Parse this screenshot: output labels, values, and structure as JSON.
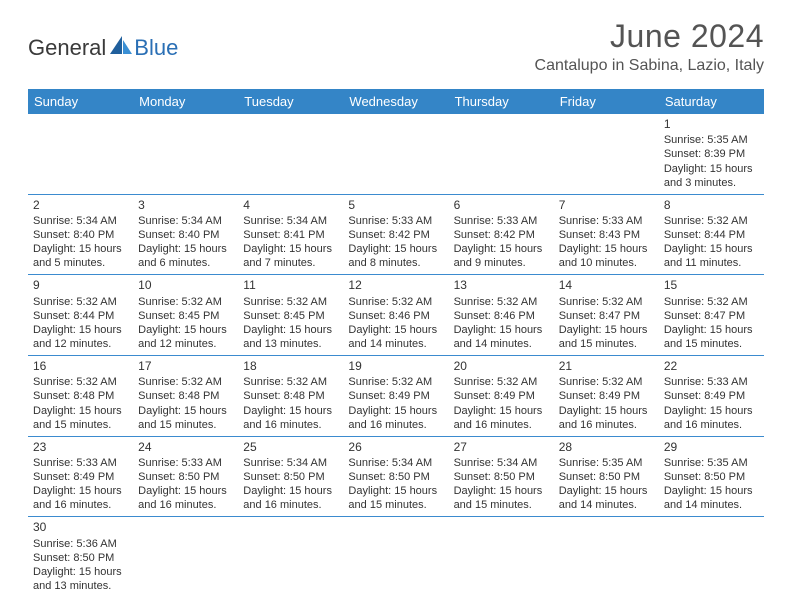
{
  "branding": {
    "logo_general": "General",
    "logo_blue": "Blue"
  },
  "header": {
    "month_title": "June 2024",
    "location": "Cantalupo in Sabina, Lazio, Italy"
  },
  "styling": {
    "header_bg": "#3485c7",
    "header_text": "#ffffff",
    "border_color": "#3b8bcf",
    "body_text": "#333333",
    "title_color": "#545454",
    "accent_blue": "#2a6fb5",
    "day_font_size": 11,
    "header_font_size": 13
  },
  "day_labels": [
    "Sunday",
    "Monday",
    "Tuesday",
    "Wednesday",
    "Thursday",
    "Friday",
    "Saturday"
  ],
  "weeks": [
    [
      null,
      null,
      null,
      null,
      null,
      null,
      {
        "n": "1",
        "sr": "5:35 AM",
        "ss": "8:39 PM",
        "dl": "15 hours and 3 minutes."
      }
    ],
    [
      {
        "n": "2",
        "sr": "5:34 AM",
        "ss": "8:40 PM",
        "dl": "15 hours and 5 minutes."
      },
      {
        "n": "3",
        "sr": "5:34 AM",
        "ss": "8:40 PM",
        "dl": "15 hours and 6 minutes."
      },
      {
        "n": "4",
        "sr": "5:34 AM",
        "ss": "8:41 PM",
        "dl": "15 hours and 7 minutes."
      },
      {
        "n": "5",
        "sr": "5:33 AM",
        "ss": "8:42 PM",
        "dl": "15 hours and 8 minutes."
      },
      {
        "n": "6",
        "sr": "5:33 AM",
        "ss": "8:42 PM",
        "dl": "15 hours and 9 minutes."
      },
      {
        "n": "7",
        "sr": "5:33 AM",
        "ss": "8:43 PM",
        "dl": "15 hours and 10 minutes."
      },
      {
        "n": "8",
        "sr": "5:32 AM",
        "ss": "8:44 PM",
        "dl": "15 hours and 11 minutes."
      }
    ],
    [
      {
        "n": "9",
        "sr": "5:32 AM",
        "ss": "8:44 PM",
        "dl": "15 hours and 12 minutes."
      },
      {
        "n": "10",
        "sr": "5:32 AM",
        "ss": "8:45 PM",
        "dl": "15 hours and 12 minutes."
      },
      {
        "n": "11",
        "sr": "5:32 AM",
        "ss": "8:45 PM",
        "dl": "15 hours and 13 minutes."
      },
      {
        "n": "12",
        "sr": "5:32 AM",
        "ss": "8:46 PM",
        "dl": "15 hours and 14 minutes."
      },
      {
        "n": "13",
        "sr": "5:32 AM",
        "ss": "8:46 PM",
        "dl": "15 hours and 14 minutes."
      },
      {
        "n": "14",
        "sr": "5:32 AM",
        "ss": "8:47 PM",
        "dl": "15 hours and 15 minutes."
      },
      {
        "n": "15",
        "sr": "5:32 AM",
        "ss": "8:47 PM",
        "dl": "15 hours and 15 minutes."
      }
    ],
    [
      {
        "n": "16",
        "sr": "5:32 AM",
        "ss": "8:48 PM",
        "dl": "15 hours and 15 minutes."
      },
      {
        "n": "17",
        "sr": "5:32 AM",
        "ss": "8:48 PM",
        "dl": "15 hours and 15 minutes."
      },
      {
        "n": "18",
        "sr": "5:32 AM",
        "ss": "8:48 PM",
        "dl": "15 hours and 16 minutes."
      },
      {
        "n": "19",
        "sr": "5:32 AM",
        "ss": "8:49 PM",
        "dl": "15 hours and 16 minutes."
      },
      {
        "n": "20",
        "sr": "5:32 AM",
        "ss": "8:49 PM",
        "dl": "15 hours and 16 minutes."
      },
      {
        "n": "21",
        "sr": "5:32 AM",
        "ss": "8:49 PM",
        "dl": "15 hours and 16 minutes."
      },
      {
        "n": "22",
        "sr": "5:33 AM",
        "ss": "8:49 PM",
        "dl": "15 hours and 16 minutes."
      }
    ],
    [
      {
        "n": "23",
        "sr": "5:33 AM",
        "ss": "8:49 PM",
        "dl": "15 hours and 16 minutes."
      },
      {
        "n": "24",
        "sr": "5:33 AM",
        "ss": "8:50 PM",
        "dl": "15 hours and 16 minutes."
      },
      {
        "n": "25",
        "sr": "5:34 AM",
        "ss": "8:50 PM",
        "dl": "15 hours and 16 minutes."
      },
      {
        "n": "26",
        "sr": "5:34 AM",
        "ss": "8:50 PM",
        "dl": "15 hours and 15 minutes."
      },
      {
        "n": "27",
        "sr": "5:34 AM",
        "ss": "8:50 PM",
        "dl": "15 hours and 15 minutes."
      },
      {
        "n": "28",
        "sr": "5:35 AM",
        "ss": "8:50 PM",
        "dl": "15 hours and 14 minutes."
      },
      {
        "n": "29",
        "sr": "5:35 AM",
        "ss": "8:50 PM",
        "dl": "15 hours and 14 minutes."
      }
    ],
    [
      {
        "n": "30",
        "sr": "5:36 AM",
        "ss": "8:50 PM",
        "dl": "15 hours and 13 minutes."
      },
      null,
      null,
      null,
      null,
      null,
      null
    ]
  ],
  "labels": {
    "sunrise_prefix": "Sunrise: ",
    "sunset_prefix": "Sunset: ",
    "daylight_prefix": "Daylight: "
  }
}
